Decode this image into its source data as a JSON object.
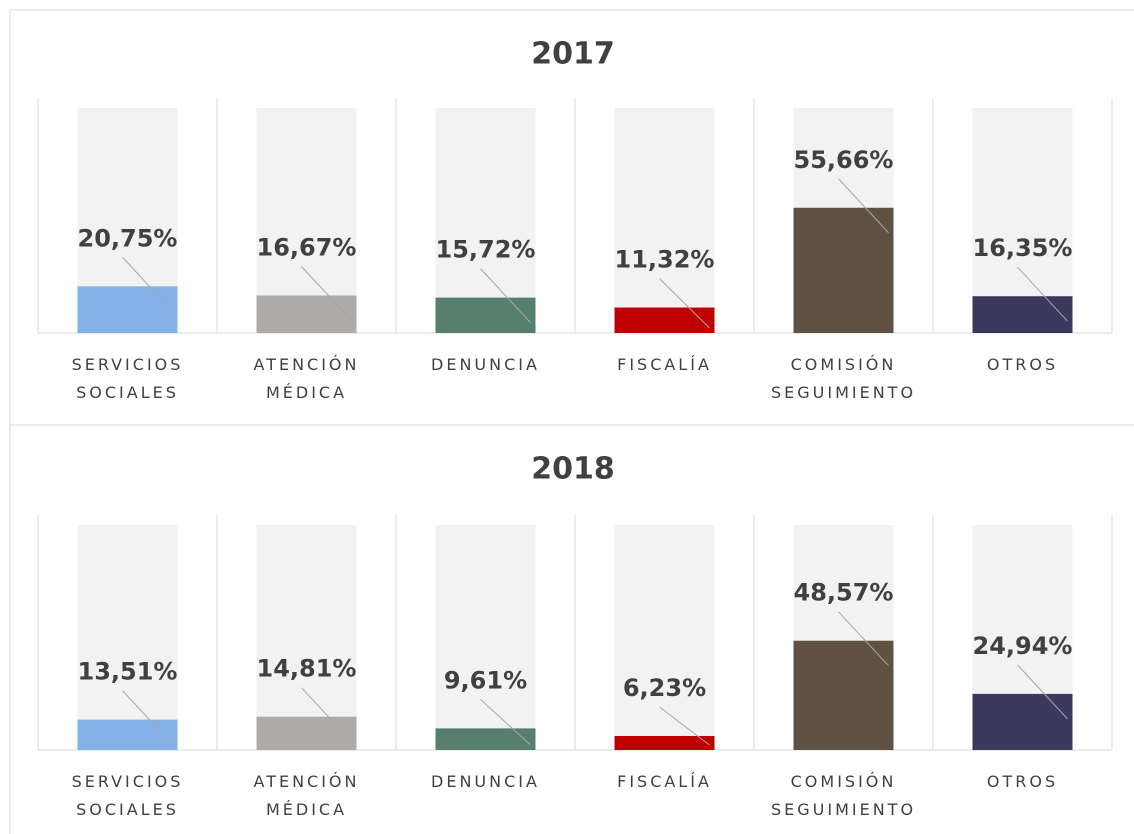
{
  "chart_data": [
    {
      "type": "bar",
      "title": "2017",
      "categories": [
        "SERVICIOS SOCIALES",
        "ATENCIÓN MÉDICA",
        "DENUNCIA",
        "FISCALÍA",
        "COMISIÓN SEGUIMIENTO",
        "OTROS"
      ],
      "values": [
        20.75,
        16.67,
        15.72,
        11.32,
        55.66,
        16.35
      ],
      "value_labels": [
        "20,75%",
        "16,67%",
        "15,72%",
        "11,32%",
        "55,66%",
        "16,35%"
      ],
      "colors": [
        "#83b1e8",
        "#aeaaa8",
        "#577f6e",
        "#c00000",
        "#605243",
        "#3b3a5e"
      ],
      "ylim": [
        0,
        100
      ]
    },
    {
      "type": "bar",
      "title": "2018",
      "categories": [
        "SERVICIOS SOCIALES",
        "ATENCIÓN MÉDICA",
        "DENUNCIA",
        "FISCALÍA",
        "COMISIÓN SEGUIMIENTO",
        "OTROS"
      ],
      "values": [
        13.51,
        14.81,
        9.61,
        6.23,
        48.57,
        24.94
      ],
      "value_labels": [
        "13,51%",
        "14,81%",
        "9,61%",
        "6,23%",
        "48,57%",
        "24,94%"
      ],
      "colors": [
        "#83b1e8",
        "#aeaaa8",
        "#577f6e",
        "#c00000",
        "#605243",
        "#3b3a5e"
      ],
      "ylim": [
        0,
        100
      ]
    }
  ]
}
